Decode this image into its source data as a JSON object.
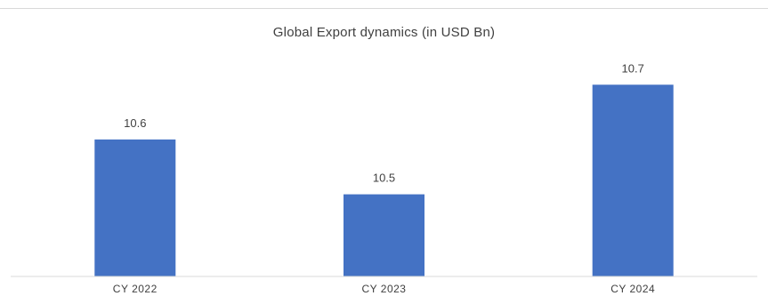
{
  "chart_data": {
    "type": "bar",
    "title": "Global Export dynamics (in USD Bn)",
    "categories": [
      "CY 2022",
      "CY 2023",
      "CY 2024"
    ],
    "values": [
      10.6,
      10.5,
      10.7
    ],
    "data_labels": [
      "10.6",
      "10.5",
      "10.7"
    ],
    "xlabel": "",
    "ylabel": "",
    "ylim": [
      10.35,
      10.72
    ],
    "grid": false,
    "legend": "none",
    "bar_color": "#4472c4"
  }
}
